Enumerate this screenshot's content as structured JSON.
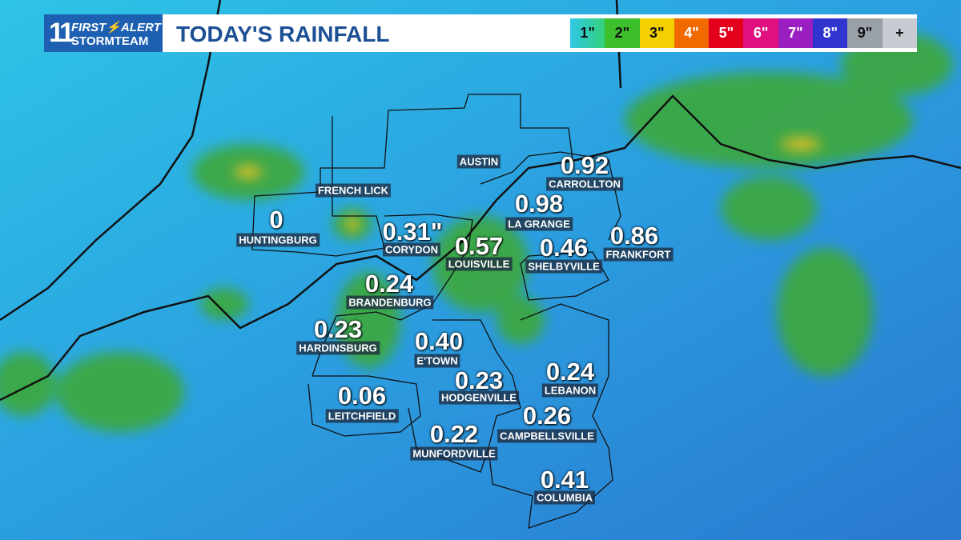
{
  "header": {
    "logo": {
      "number": "11",
      "line1_left": "FIRST",
      "line1_right": "ALERT",
      "line2": "STORMTEAM"
    },
    "title": "TODAY'S RAINFALL",
    "legend": [
      "1\"",
      "2\"",
      "3\"",
      "4\"",
      "5\"",
      "6\"",
      "7\"",
      "8\"",
      "9\"",
      "+"
    ]
  },
  "cities": [
    {
      "name": "AUSTIN"
    },
    {
      "name": "FRENCH LICK"
    },
    {
      "name": "HUNTINGBURG",
      "value": "0"
    },
    {
      "name": "CORYDON",
      "value": "0.31\""
    },
    {
      "name": "LOUISVILLE",
      "value": "0.57"
    },
    {
      "name": "CARROLLTON",
      "value": "0.92"
    },
    {
      "name": "LA GRANGE",
      "value": "0.98"
    },
    {
      "name": "SHELBYVILLE",
      "value": "0.46"
    },
    {
      "name": "FRANKFORT",
      "value": "0.86"
    },
    {
      "name": "BRANDENBURG",
      "value": "0.24"
    },
    {
      "name": "HARDINSBURG",
      "value": "0.23"
    },
    {
      "name": "E'TOWN",
      "value": "0.40"
    },
    {
      "name": "HODGENVILLE",
      "value": "0.23"
    },
    {
      "name": "LEBANON",
      "value": "0.24"
    },
    {
      "name": "LEITCHFIELD",
      "value": "0.06"
    },
    {
      "name": "CAMPBELLSVILLE",
      "value": "0.26"
    },
    {
      "name": "MUNFORDVILLE",
      "value": "0.22"
    },
    {
      "name": "COLUMBIA",
      "value": "0.41"
    }
  ]
}
